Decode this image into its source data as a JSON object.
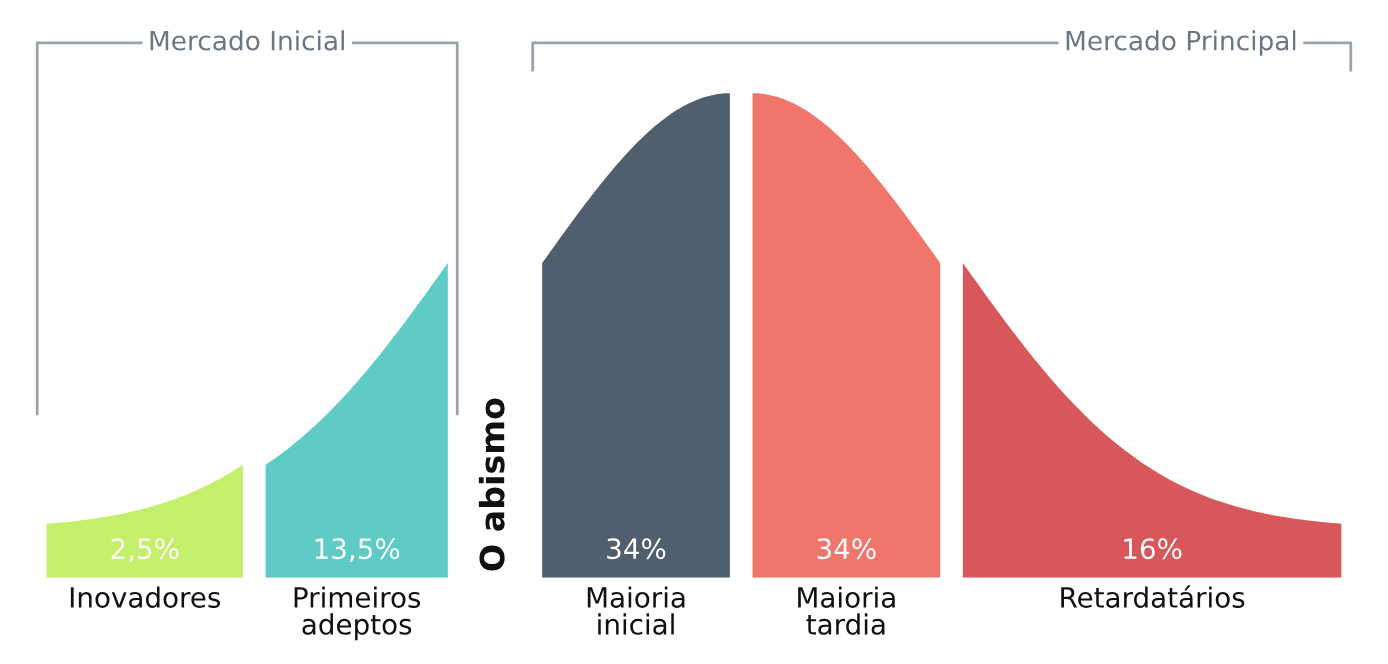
{
  "chart_data": {
    "type": "other",
    "categories": [
      "Inovadores",
      "Primeiros adeptos",
      "Maioria inicial",
      "Maioria tardia",
      "Retardatários"
    ],
    "values": [
      2.5,
      13.5,
      34,
      34,
      16
    ],
    "value_labels": [
      "2,5%",
      "13,5%",
      "34%",
      "34%",
      "16%"
    ],
    "colors": [
      "#c3ef6b",
      "#5ecbc4",
      "#4f5f6d",
      "#f0766b",
      "#d8575b"
    ],
    "annotations": [
      "Mercado Inicial",
      "Mercado Principal",
      "O abismo"
    ]
  }
}
